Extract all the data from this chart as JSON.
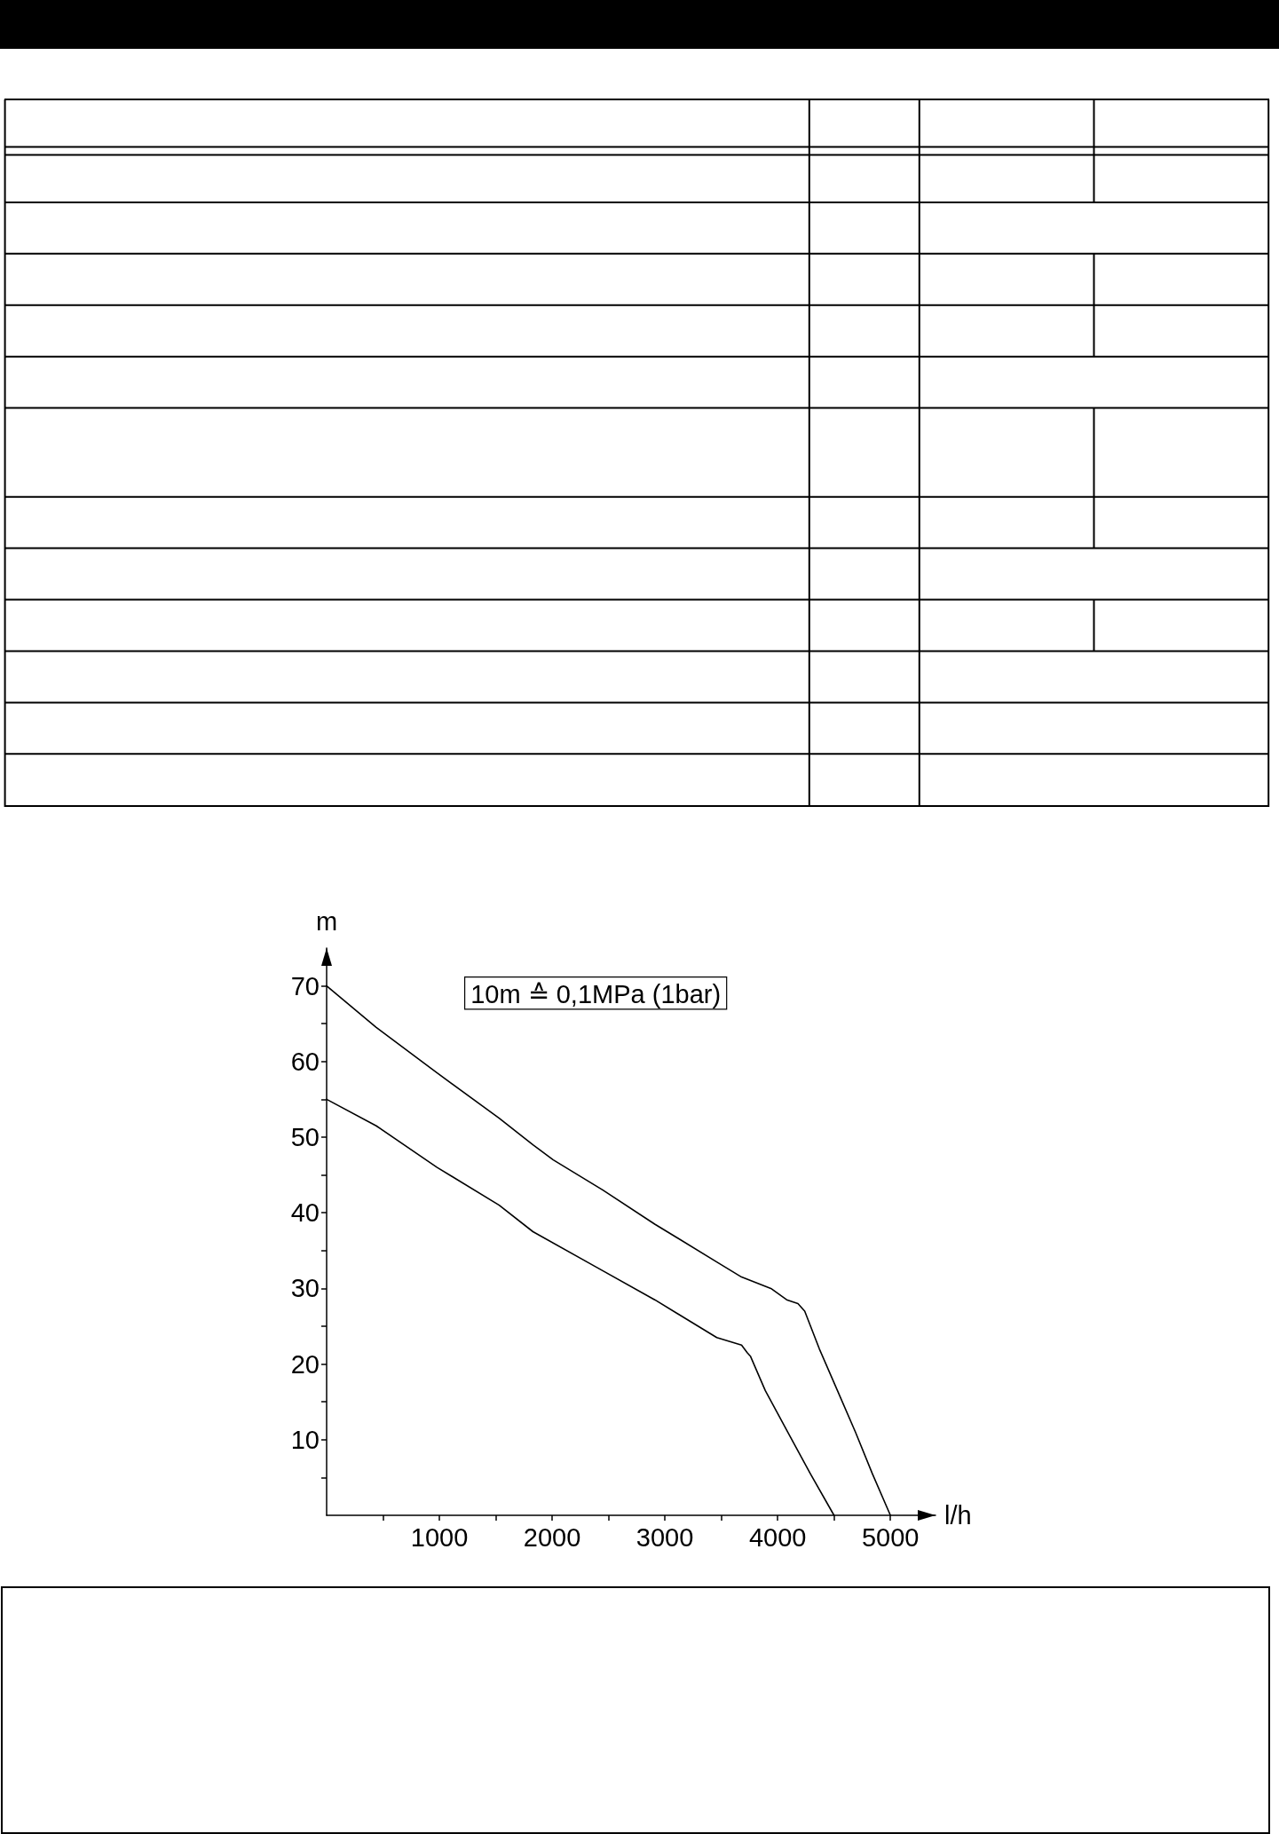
{
  "chart_data": {
    "type": "line",
    "xlabel": "l/h",
    "ylabel": "m",
    "annotations": [
      "10m ≙ 0,1MPa (1bar)"
    ],
    "series": [
      {
        "color": "#000000",
        "x": [
          0,
          440,
          980,
          1530,
          1830,
          2010,
          2450,
          2910,
          3460,
          3680,
          3940,
          4080,
          4180,
          4240,
          4370,
          4530,
          4690,
          4840,
          5000
        ],
        "values": [
          70,
          64.5,
          58.5,
          52.5,
          49,
          47,
          43,
          38.5,
          33.5,
          31.5,
          30,
          28.5,
          28,
          27,
          22,
          16.5,
          11,
          5.5,
          0
        ]
      },
      {
        "color": "#000000",
        "x": [
          0,
          440,
          980,
          1530,
          1830,
          2370,
          2910,
          3460,
          3680,
          3730,
          3760,
          3890,
          4090,
          4290,
          4500
        ],
        "values": [
          55,
          51.5,
          46,
          41,
          37.5,
          33,
          28.5,
          23.5,
          22.5,
          21.5,
          21,
          16.5,
          11,
          5.5,
          0
        ]
      }
    ],
    "xlim": [
      0,
      5400
    ],
    "ylim": [
      0,
      75
    ],
    "xticks": [
      {
        "value": 500,
        "label": null
      },
      1000,
      {
        "value": 1500,
        "label": null
      },
      2000,
      {
        "value": 2500,
        "label": null
      },
      3000,
      {
        "value": 3500,
        "label": null
      },
      4000,
      {
        "value": 4500,
        "label": null
      },
      5000
    ],
    "yticks": [
      {
        "value": 5,
        "label": null
      },
      10,
      {
        "value": 15,
        "label": null
      },
      20,
      {
        "value": 25,
        "label": null
      },
      30,
      {
        "value": 35,
        "label": null
      },
      40,
      {
        "value": 45,
        "label": null
      },
      50,
      {
        "value": 55,
        "label": null
      },
      60,
      {
        "value": 65,
        "label": null
      },
      70
    ]
  }
}
